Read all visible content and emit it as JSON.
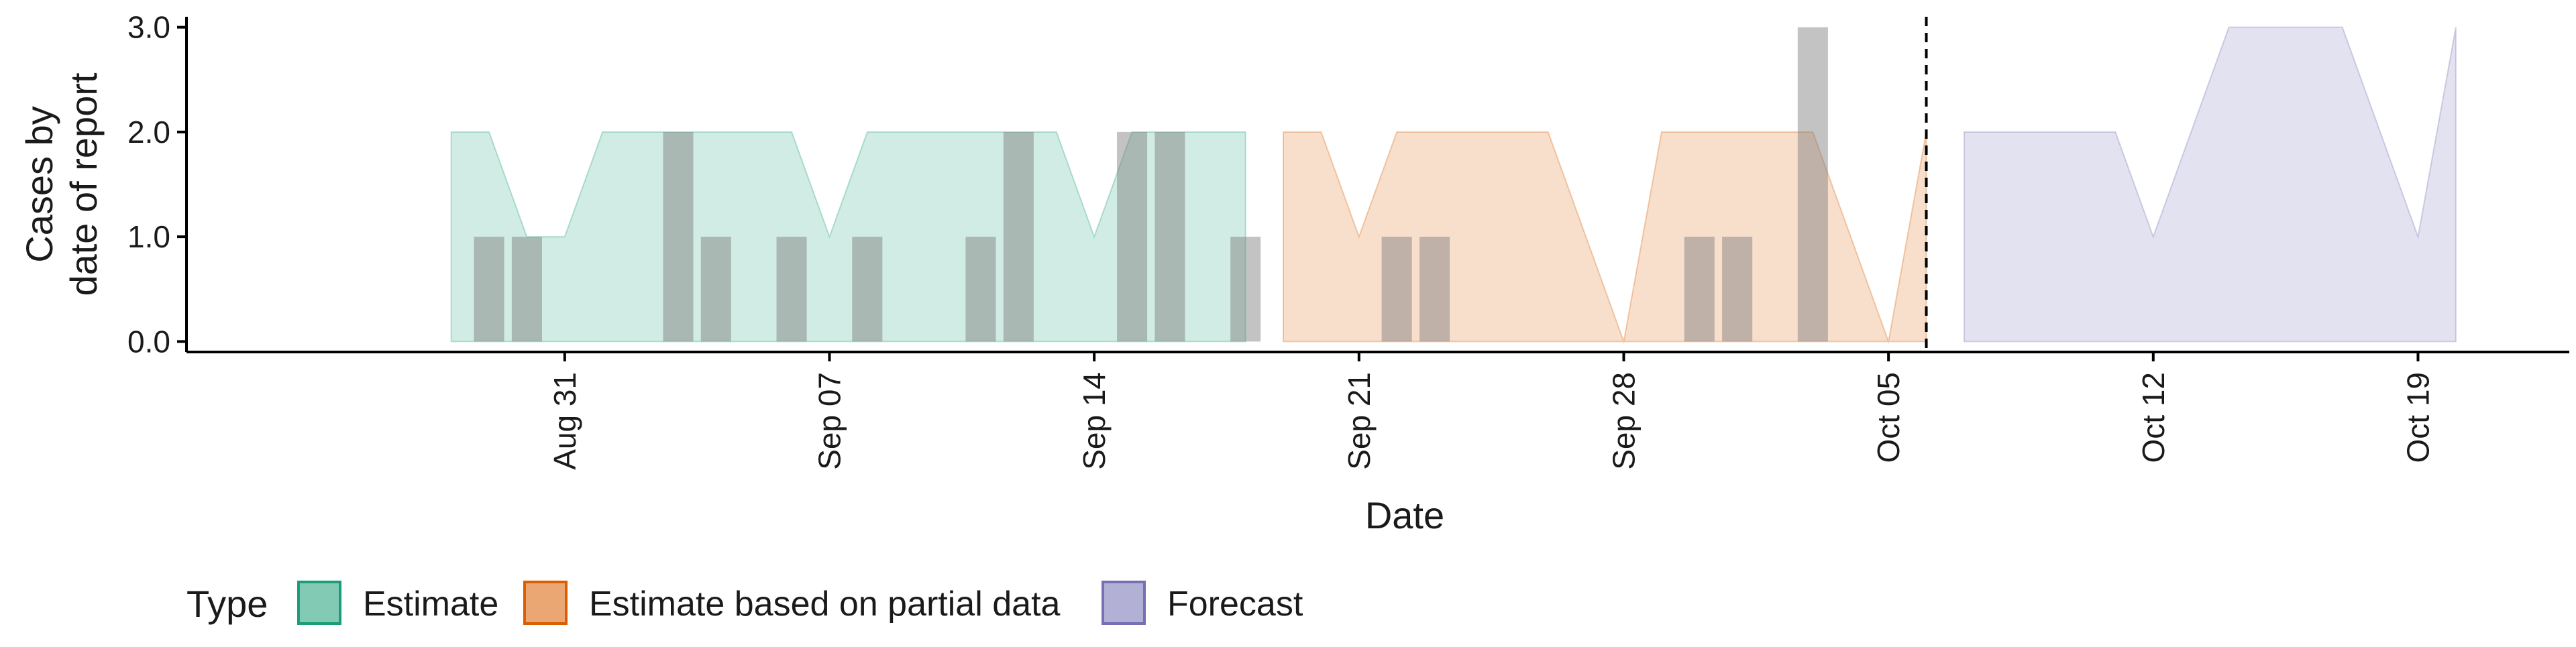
{
  "chart_data": {
    "type": "area",
    "title": "",
    "xlabel": "Date",
    "ylabel_lines": [
      "Cases by",
      "date of report"
    ],
    "x_range": [
      "2020-08-21",
      "2020-10-23"
    ],
    "ylim": [
      -0.1,
      3.1
    ],
    "y_ticks": [
      {
        "value": 0,
        "label": "0.0"
      },
      {
        "value": 1,
        "label": "1.0"
      },
      {
        "value": 2,
        "label": "2.0"
      },
      {
        "value": 3,
        "label": "3.0"
      }
    ],
    "x_ticks": [
      {
        "date": "2020-08-31",
        "label": "Aug 31"
      },
      {
        "date": "2020-09-07",
        "label": "Sep 07"
      },
      {
        "date": "2020-09-14",
        "label": "Sep 14"
      },
      {
        "date": "2020-09-21",
        "label": "Sep 21"
      },
      {
        "date": "2020-09-28",
        "label": "Sep 28"
      },
      {
        "date": "2020-10-05",
        "label": "Oct 05"
      },
      {
        "date": "2020-10-12",
        "label": "Oct 12"
      },
      {
        "date": "2020-10-19",
        "label": "Oct 19"
      }
    ],
    "grid": false,
    "forecast_divider_date": "2020-10-06",
    "reported_cases": [
      {
        "date": "2020-08-29",
        "value": 1
      },
      {
        "date": "2020-08-30",
        "value": 1
      },
      {
        "date": "2020-09-03",
        "value": 2
      },
      {
        "date": "2020-09-04",
        "value": 1
      },
      {
        "date": "2020-09-06",
        "value": 1
      },
      {
        "date": "2020-09-08",
        "value": 1
      },
      {
        "date": "2020-09-11",
        "value": 1
      },
      {
        "date": "2020-09-12",
        "value": 2
      },
      {
        "date": "2020-09-15",
        "value": 2
      },
      {
        "date": "2020-09-16",
        "value": 2
      },
      {
        "date": "2020-09-18",
        "value": 1
      },
      {
        "date": "2020-09-22",
        "value": 1
      },
      {
        "date": "2020-09-23",
        "value": 1
      },
      {
        "date": "2020-09-30",
        "value": 1
      },
      {
        "date": "2020-10-01",
        "value": 1
      },
      {
        "date": "2020-10-03",
        "value": 3
      }
    ],
    "series": [
      {
        "name": "Estimate",
        "color": "#1b9e77",
        "points": [
          {
            "date": "2020-08-28",
            "lower": 0,
            "upper": 2
          },
          {
            "date": "2020-08-29",
            "lower": 0,
            "upper": 2
          },
          {
            "date": "2020-08-30",
            "lower": 0,
            "upper": 1
          },
          {
            "date": "2020-08-31",
            "lower": 0,
            "upper": 1
          },
          {
            "date": "2020-09-01",
            "lower": 0,
            "upper": 2
          },
          {
            "date": "2020-09-02",
            "lower": 0,
            "upper": 2
          },
          {
            "date": "2020-09-03",
            "lower": 0,
            "upper": 2
          },
          {
            "date": "2020-09-04",
            "lower": 0,
            "upper": 2
          },
          {
            "date": "2020-09-05",
            "lower": 0,
            "upper": 2
          },
          {
            "date": "2020-09-06",
            "lower": 0,
            "upper": 2
          },
          {
            "date": "2020-09-07",
            "lower": 0,
            "upper": 1
          },
          {
            "date": "2020-09-08",
            "lower": 0,
            "upper": 2
          },
          {
            "date": "2020-09-09",
            "lower": 0,
            "upper": 2
          },
          {
            "date": "2020-09-10",
            "lower": 0,
            "upper": 2
          },
          {
            "date": "2020-09-11",
            "lower": 0,
            "upper": 2
          },
          {
            "date": "2020-09-12",
            "lower": 0,
            "upper": 2
          },
          {
            "date": "2020-09-13",
            "lower": 0,
            "upper": 2
          },
          {
            "date": "2020-09-14",
            "lower": 0,
            "upper": 1
          },
          {
            "date": "2020-09-15",
            "lower": 0,
            "upper": 2
          },
          {
            "date": "2020-09-16",
            "lower": 0,
            "upper": 2
          },
          {
            "date": "2020-09-17",
            "lower": 0,
            "upper": 2
          },
          {
            "date": "2020-09-18",
            "lower": 0,
            "upper": 2
          }
        ]
      },
      {
        "name": "Estimate based on partial data",
        "color": "#d95f02",
        "points": [
          {
            "date": "2020-09-19",
            "lower": 0,
            "upper": 2
          },
          {
            "date": "2020-09-20",
            "lower": 0,
            "upper": 2
          },
          {
            "date": "2020-09-21",
            "lower": 0,
            "upper": 1
          },
          {
            "date": "2020-09-22",
            "lower": 0,
            "upper": 2
          },
          {
            "date": "2020-09-23",
            "lower": 0,
            "upper": 2
          },
          {
            "date": "2020-09-24",
            "lower": 0,
            "upper": 2
          },
          {
            "date": "2020-09-25",
            "lower": 0,
            "upper": 2
          },
          {
            "date": "2020-09-26",
            "lower": 0,
            "upper": 2
          },
          {
            "date": "2020-09-27",
            "lower": 0,
            "upper": 1
          },
          {
            "date": "2020-09-28",
            "lower": 0,
            "upper": 0
          },
          {
            "date": "2020-09-29",
            "lower": 0,
            "upper": 2
          },
          {
            "date": "2020-09-30",
            "lower": 0,
            "upper": 2
          },
          {
            "date": "2020-10-01",
            "lower": 0,
            "upper": 2
          },
          {
            "date": "2020-10-02",
            "lower": 0,
            "upper": 2
          },
          {
            "date": "2020-10-03",
            "lower": 0,
            "upper": 2
          },
          {
            "date": "2020-10-04",
            "lower": 0,
            "upper": 1
          },
          {
            "date": "2020-10-05",
            "lower": 0,
            "upper": 0
          },
          {
            "date": "2020-10-06",
            "lower": 0,
            "upper": 2
          }
        ]
      },
      {
        "name": "Forecast",
        "color": "#7570b3",
        "points": [
          {
            "date": "2020-10-07",
            "lower": 0,
            "upper": 2
          },
          {
            "date": "2020-10-08",
            "lower": 0,
            "upper": 2
          },
          {
            "date": "2020-10-09",
            "lower": 0,
            "upper": 2
          },
          {
            "date": "2020-10-10",
            "lower": 0,
            "upper": 2
          },
          {
            "date": "2020-10-11",
            "lower": 0,
            "upper": 2
          },
          {
            "date": "2020-10-12",
            "lower": 0,
            "upper": 1
          },
          {
            "date": "2020-10-13",
            "lower": 0,
            "upper": 2
          },
          {
            "date": "2020-10-14",
            "lower": 0,
            "upper": 3
          },
          {
            "date": "2020-10-15",
            "lower": 0,
            "upper": 3
          },
          {
            "date": "2020-10-16",
            "lower": 0,
            "upper": 3
          },
          {
            "date": "2020-10-17",
            "lower": 0,
            "upper": 3
          },
          {
            "date": "2020-10-18",
            "lower": 0,
            "upper": 2
          },
          {
            "date": "2020-10-19",
            "lower": 0,
            "upper": 1
          },
          {
            "date": "2020-10-20",
            "lower": 0,
            "upper": 3
          }
        ]
      }
    ],
    "legend": {
      "title": "Type",
      "position": "bottom-left",
      "entries": [
        {
          "label": "Estimate",
          "color": "#1b9e77"
        },
        {
          "label": "Estimate based on partial data",
          "color": "#d95f02"
        },
        {
          "label": "Forecast",
          "color": "#7570b3"
        }
      ]
    }
  }
}
